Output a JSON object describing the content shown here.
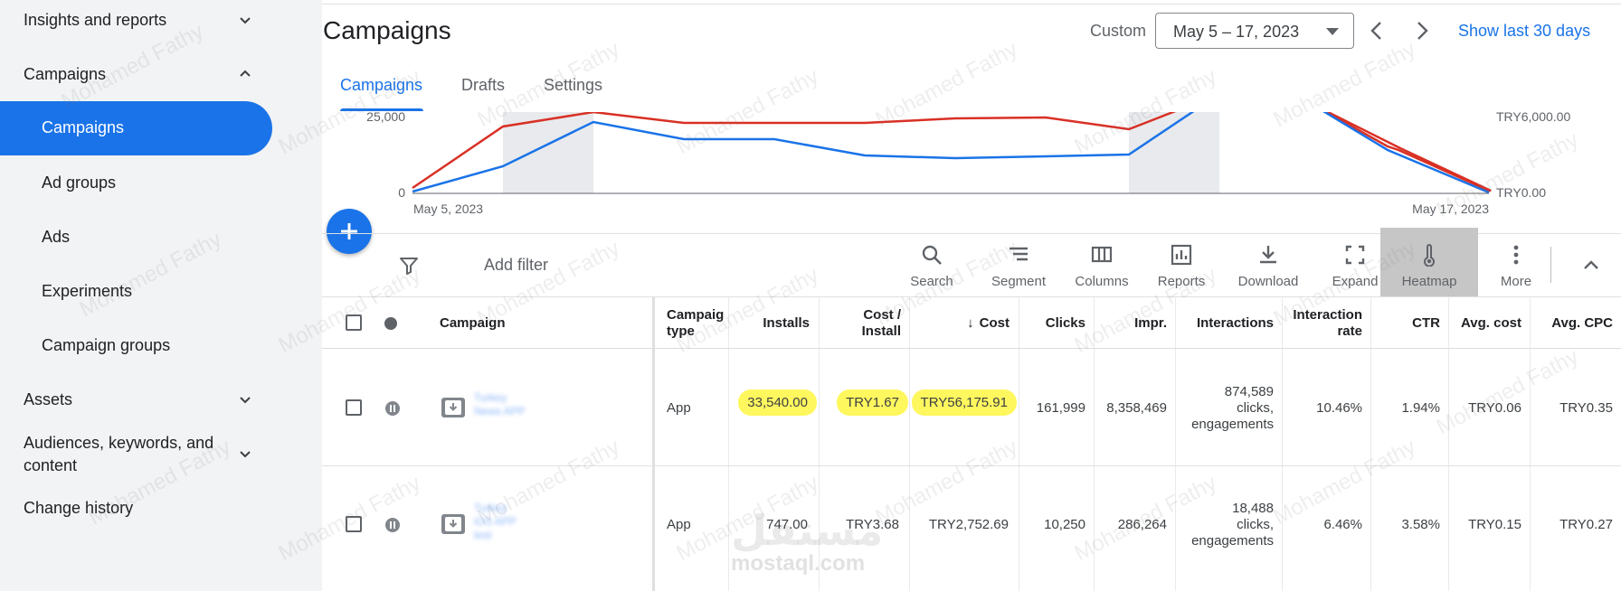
{
  "sidebar": {
    "insights": "Insights and reports",
    "campaigns_section": "Campaigns",
    "items": [
      "Campaigns",
      "Ad groups",
      "Ads",
      "Experiments",
      "Campaign groups"
    ],
    "assets": "Assets",
    "audiences_line1": "Audiences, keywords, and",
    "audiences_line2": "content",
    "change_history": "Change history"
  },
  "header": {
    "title": "Campaigns",
    "custom_label": "Custom",
    "date_range": "May 5 – 17, 2023",
    "show_last": "Show last 30 days"
  },
  "tabs": [
    "Campaigns",
    "Drafts",
    "Settings"
  ],
  "chart_data": {
    "type": "line",
    "x_start_label": "May 5, 2023",
    "x_end_label": "May 17, 2023",
    "left_ticks": [
      "25,000",
      "0"
    ],
    "right_ticks": [
      "TRY6,000.00",
      "TRY0.00"
    ]
  },
  "toolbar": {
    "add_filter": "Add filter",
    "tools": [
      "Search",
      "Segment",
      "Columns",
      "Reports",
      "Download",
      "Expand",
      "Heatmap",
      "More"
    ]
  },
  "table": {
    "headers": {
      "campaign": "Campaign",
      "type_line1": "Campaig",
      "type_line2": "type",
      "installs": "Installs",
      "cpi_line1": "Cost /",
      "cpi_line2": "Install",
      "cost_arrow": "↓",
      "cost": "Cost",
      "clicks": "Clicks",
      "impr": "Impr.",
      "interactions": "Interactions",
      "irate_line1": "Interaction",
      "irate_line2": "rate",
      "ctr": "CTR",
      "avg_cost": "Avg. cost",
      "avg_cpc": "Avg. CPC"
    },
    "rows": [
      {
        "name_blur": [
          "Turkey",
          "News APP"
        ],
        "type": "App",
        "installs": "33,540.00",
        "cpi": "TRY1.67",
        "cost": "TRY56,175.91",
        "clicks": "161,999",
        "impr": "8,358,469",
        "int1": "874,589",
        "int2": "clicks,",
        "int3": "engagements",
        "irate": "10.46%",
        "ctr": "1.94%",
        "avg_cost": "TRY0.06",
        "avg_cpc": "TRY0.35"
      },
      {
        "name_blur": [
          "Turkey",
          "iOS APP",
          "test"
        ],
        "type": "App",
        "installs": "747.00",
        "cpi": "TRY3.68",
        "cost": "TRY2,752.69",
        "clicks": "10,250",
        "impr": "286,264",
        "int1": "18,488",
        "int2": "clicks,",
        "int3": "engagements",
        "irate": "6.46%",
        "ctr": "3.58%",
        "avg_cost": "TRY0.15",
        "avg_cpc": "TRY0.27"
      }
    ]
  },
  "watermark": {
    "text": "Mohamed Fathy",
    "logo_ar": "مستقل",
    "logo_en": "mostaql.com"
  },
  "colors": {
    "primary": "#1a73e8",
    "red_series": "#d93025",
    "blue_series": "#1a73e8",
    "highlight": "#fff75e"
  }
}
